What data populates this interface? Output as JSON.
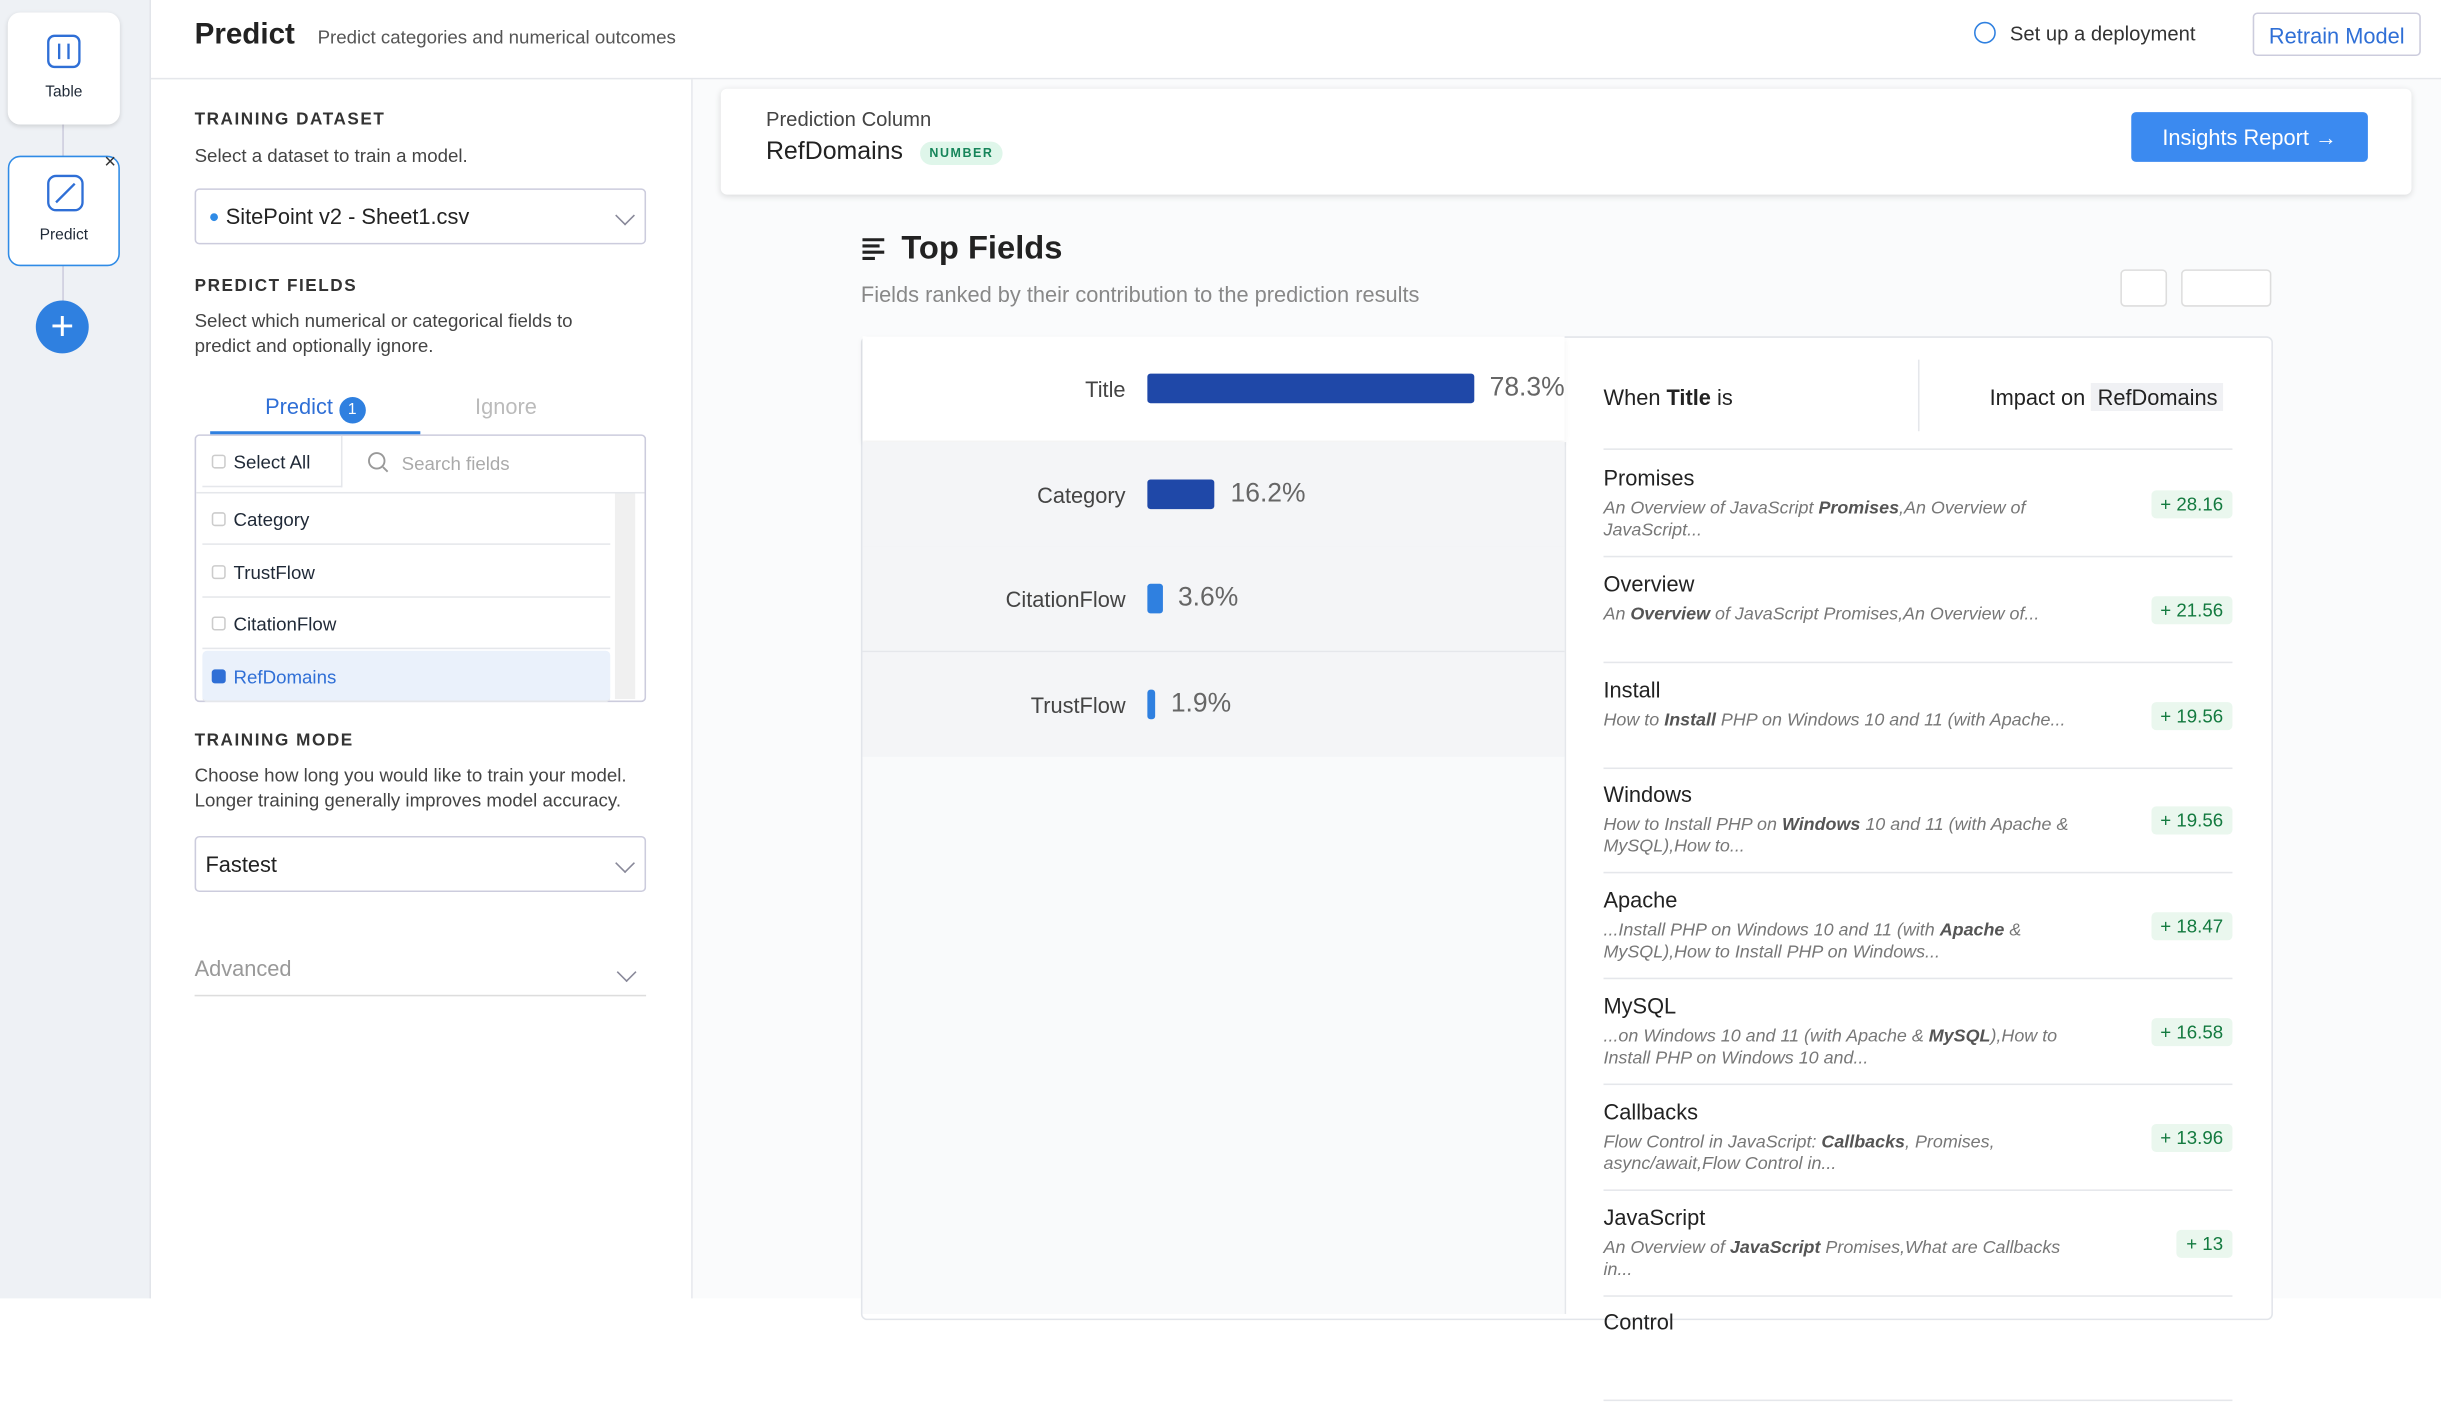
{
  "nav": {
    "items": [
      "Table",
      "Predict"
    ]
  },
  "header": {
    "title": "Predict",
    "subtitle": "Predict categories and numerical outcomes",
    "deployment": "Set up a deployment",
    "retrain": "Retrain Model"
  },
  "left": {
    "training_dataset": {
      "heading": "TRAINING DATASET",
      "hint": "Select a dataset to train a model.",
      "selected": "SitePoint v2 - Sheet1.csv"
    },
    "predict_fields": {
      "heading": "PREDICT FIELDS",
      "hint": "Select which numerical or categorical fields to predict and optionally ignore.",
      "tabs": [
        "Predict",
        "Ignore"
      ],
      "predict_count": 1,
      "select_all": "Select All",
      "search_placeholder": "Search fields",
      "fields": [
        "Category",
        "TrustFlow",
        "CitationFlow",
        "RefDomains"
      ]
    },
    "training_mode": {
      "heading": "TRAINING MODE",
      "hint": "Choose how long you would like to train your model. Longer training generally improves model accuracy.",
      "selected": "Fastest"
    },
    "advanced": "Advanced"
  },
  "prediction": {
    "label": "Prediction Column",
    "column": "RefDomains",
    "badge": "NUMBER",
    "insights": "Insights Report →"
  },
  "top_fields": {
    "title": "Top Fields",
    "subtitle": "Fields ranked by their contribution to the prediction results",
    "items": [
      {
        "name": "Title",
        "value": 78.3,
        "label": "78.3%"
      },
      {
        "name": "Category",
        "value": 16.2,
        "label": "16.2%"
      },
      {
        "name": "CitationFlow",
        "value": 3.6,
        "label": "3.6%"
      },
      {
        "name": "TrustFlow",
        "value": 1.9,
        "label": "1.9%"
      }
    ],
    "when_prefix": "When",
    "when_field": "Title",
    "when_suffix": "is",
    "impact_label": "Impact on",
    "impact_column": "RefDomains",
    "values": [
      {
        "term": "Promises",
        "snippet": [
          "An Overview of JavaScript ",
          "Promises",
          ",An Overview of JavaScript..."
        ],
        "impact": "+ 28.16"
      },
      {
        "term": "Overview",
        "snippet": [
          "An ",
          "Overview",
          " of JavaScript Promises,An Overview of..."
        ],
        "impact": "+ 21.56"
      },
      {
        "term": "Install",
        "snippet": [
          "How to ",
          "Install",
          " PHP on Windows 10 and 11 (with Apache..."
        ],
        "impact": "+ 19.56"
      },
      {
        "term": "Windows",
        "snippet": [
          "How to Install PHP on ",
          "Windows",
          " 10 and 11 (with Apache & MySQL),How to..."
        ],
        "impact": "+ 19.56"
      },
      {
        "term": "Apache",
        "snippet": [
          "...Install PHP on Windows 10 and 11 (with ",
          "Apache",
          " & MySQL),How to Install PHP on Windows..."
        ],
        "impact": "+ 18.47"
      },
      {
        "term": "MySQL",
        "snippet": [
          "...on Windows 10 and 11 (with Apache & ",
          "MySQL",
          "),How to Install PHP on Windows 10 and..."
        ],
        "impact": "+ 16.58"
      },
      {
        "term": "Callbacks",
        "snippet": [
          "Flow Control in JavaScript: ",
          "Callbacks",
          ", Promises, async/await,Flow Control in..."
        ],
        "impact": "+ 13.96"
      },
      {
        "term": "JavaScript",
        "snippet": [
          "An Overview of ",
          "JavaScript",
          " Promises,What are Callbacks in..."
        ],
        "impact": "+ 13"
      },
      {
        "term": "Control"
      }
    ]
  }
}
